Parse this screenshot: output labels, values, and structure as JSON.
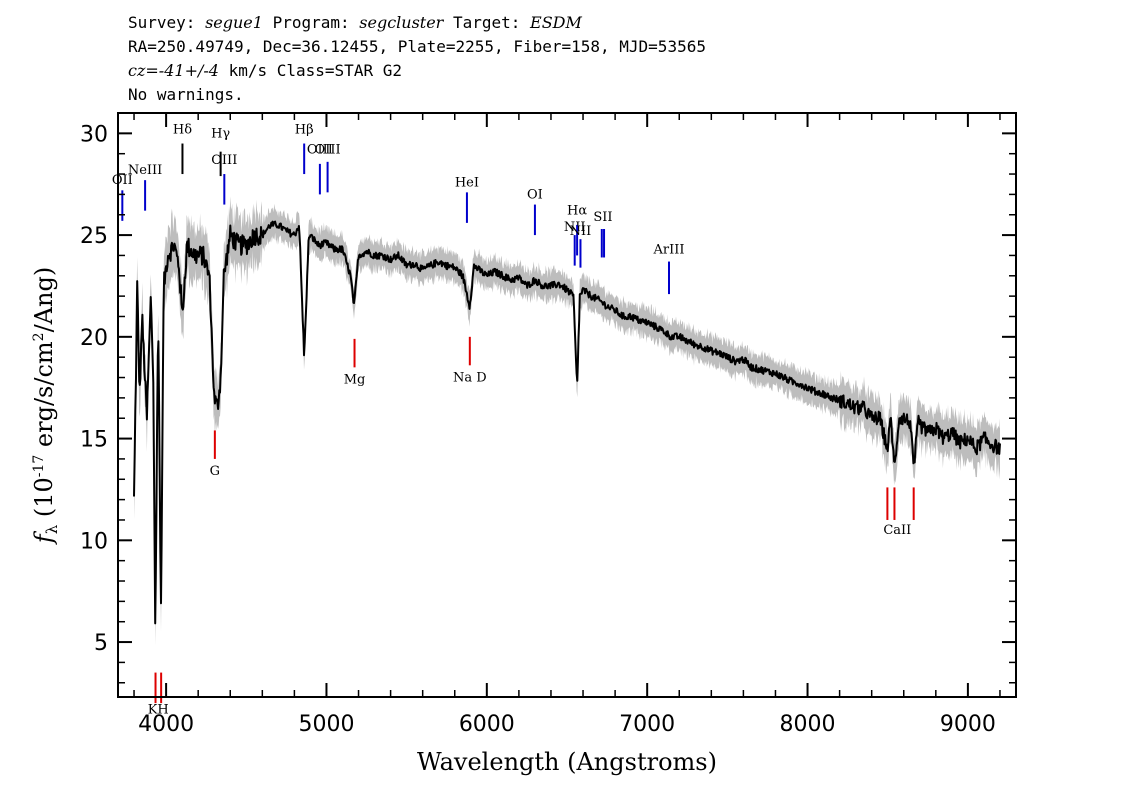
{
  "header": {
    "line1_survey_label": "Survey: ",
    "line1_survey_value": "segue1",
    "line1_program_label": " Program: ",
    "line1_program_value": "segcluster",
    "line1_target_label": " Target: ",
    "line1_target_value": "ESDM",
    "line2": "RA=250.49749, Dec=36.12455, Plate=2255, Fiber=158, MJD=53565",
    "line3_cz_label": "cz=",
    "line3_cz_value": "-41+/-4",
    "line3_rest": " km/s Class=STAR G2",
    "line4": "No warnings."
  },
  "colors": {
    "spectrum": "#000000",
    "error_band": "#bdbdbd",
    "emission_line": "#0000cc",
    "absorption_line": "#dd0000",
    "balmer_line": "#000000"
  },
  "chart_data": {
    "type": "line",
    "xlabel": "Wavelength (Angstroms)",
    "ylabel_parts": {
      "f": "f",
      "sub": "λ",
      "open": " (10",
      "exp": "-17",
      "mid": " erg/s/cm",
      "exp2": "2",
      "close": "/Ang)"
    },
    "xlim": [
      3700,
      9300
    ],
    "ylim": [
      2.3,
      31.0
    ],
    "x_ticks": [
      4000,
      5000,
      6000,
      7000,
      8000,
      9000
    ],
    "x_tick_labels": [
      "4000",
      "5000",
      "6000",
      "7000",
      "8000",
      "9000"
    ],
    "y_ticks": [
      5,
      10,
      15,
      20,
      25,
      30
    ],
    "y_tick_labels": [
      "5",
      "10",
      "15",
      "20",
      "25",
      "30"
    ],
    "series": [
      {
        "x": [
          3800,
          3820,
          3835,
          3850,
          3880,
          3905,
          3920,
          3933,
          3950,
          3968,
          3985,
          4010,
          4050,
          4080,
          4101,
          4130,
          4180,
          4230,
          4270,
          4300,
          4320,
          4340,
          4360,
          4400,
          4450,
          4500,
          4550,
          4600,
          4650,
          4700,
          4750,
          4800,
          4830,
          4861,
          4890,
          4920,
          4950,
          5000,
          5050,
          5100,
          5150,
          5172,
          5200,
          5250,
          5300,
          5350,
          5400,
          5450,
          5500,
          5550,
          5600,
          5650,
          5700,
          5750,
          5800,
          5850,
          5893,
          5920,
          5950,
          6000,
          6050,
          6100,
          6150,
          6200,
          6250,
          6300,
          6350,
          6400,
          6450,
          6500,
          6540,
          6563,
          6580,
          6600,
          6650,
          6700,
          6750,
          6800,
          6850,
          6900,
          6950,
          7000,
          7050,
          7100,
          7150,
          7200,
          7250,
          7300,
          7350,
          7400,
          7450,
          7500,
          7550,
          7600,
          7650,
          7700,
          7750,
          7800,
          7850,
          7900,
          7950,
          8000,
          8050,
          8100,
          8150,
          8200,
          8250,
          8300,
          8350,
          8400,
          8450,
          8498,
          8520,
          8542,
          8570,
          8600,
          8640,
          8662,
          8690,
          8720,
          8760,
          8800,
          8850,
          8900,
          8950,
          9000,
          9050,
          9100,
          9150,
          9200
        ],
        "y": [
          12.0,
          22.5,
          17.0,
          21.0,
          16.0,
          22.0,
          18.0,
          5.0,
          21.5,
          6.5,
          22.5,
          24.0,
          24.5,
          23.5,
          21.0,
          24.5,
          24.0,
          24.0,
          23.0,
          17.0,
          16.5,
          18.0,
          23.0,
          25.0,
          24.5,
          24.5,
          25.0,
          25.0,
          25.5,
          25.5,
          25.2,
          25.0,
          25.5,
          19.0,
          25.0,
          24.8,
          24.5,
          24.6,
          24.3,
          24.3,
          23.0,
          21.5,
          24.0,
          24.2,
          24.0,
          24.0,
          23.8,
          24.0,
          23.5,
          23.6,
          23.3,
          23.5,
          23.7,
          23.5,
          23.4,
          23.0,
          21.5,
          23.5,
          23.3,
          23.0,
          23.2,
          23.0,
          22.8,
          22.9,
          22.5,
          22.8,
          22.5,
          22.5,
          22.6,
          22.3,
          22.0,
          17.5,
          22.0,
          22.3,
          22.0,
          21.8,
          21.5,
          21.3,
          21.0,
          21.0,
          20.8,
          20.7,
          20.5,
          20.3,
          20.0,
          20.0,
          19.8,
          19.6,
          19.5,
          19.3,
          19.2,
          19.0,
          18.8,
          18.9,
          18.5,
          18.4,
          18.3,
          18.2,
          18.0,
          17.8,
          17.7,
          17.5,
          17.3,
          17.2,
          17.0,
          16.9,
          16.7,
          16.5,
          16.5,
          16.0,
          16.0,
          14.5,
          16.0,
          13.5,
          16.0,
          16.0,
          15.8,
          13.5,
          15.8,
          15.5,
          15.3,
          15.5,
          15.0,
          15.3,
          14.8,
          15.0,
          14.5,
          15.0,
          14.7,
          14.5
        ]
      }
    ],
    "line_markers": [
      {
        "label": "OII",
        "x": 3727,
        "kind": "emission",
        "y_top": 27.2,
        "y_bot": 25.7,
        "label_y": 27.5
      },
      {
        "label": "NeIII",
        "x": 3869,
        "kind": "emission",
        "y_top": 27.7,
        "y_bot": 26.2,
        "label_y": 28.0
      },
      {
        "label": "Hδ",
        "x": 4102,
        "kind": "balmer",
        "y_top": 29.5,
        "y_bot": 28.0,
        "label_y": 30.0
      },
      {
        "label": "Hγ",
        "x": 4340,
        "kind": "balmer",
        "y_top": 29.1,
        "y_bot": 27.9,
        "label_y": 29.8
      },
      {
        "label": "OIII",
        "x": 4363,
        "kind": "emission",
        "y_top": 28.0,
        "y_bot": 26.5,
        "label_y": 28.5
      },
      {
        "label": "Hβ",
        "x": 4861,
        "kind": "emission",
        "y_top": 29.5,
        "y_bot": 28.0,
        "label_y": 30.0
      },
      {
        "label": "OIII",
        "x": 4959,
        "kind": "emission",
        "y_top": 28.5,
        "y_bot": 27.0,
        "label_y": 29.0
      },
      {
        "label": "OIII",
        "x": 5007,
        "kind": "emission",
        "y_top": 28.6,
        "y_bot": 27.1,
        "label_y": 29.0
      },
      {
        "label": "HeI",
        "x": 5876,
        "kind": "emission",
        "y_top": 27.1,
        "y_bot": 25.6,
        "label_y": 27.4
      },
      {
        "label": "OI",
        "x": 6300,
        "kind": "emission",
        "y_top": 26.5,
        "y_bot": 25.0,
        "label_y": 26.8
      },
      {
        "label": "NII",
        "x": 6548,
        "kind": "emission",
        "y_top": 25.0,
        "y_bot": 23.5,
        "label_y": 25.2
      },
      {
        "label": "Hα",
        "x": 6563,
        "kind": "emission",
        "y_top": 25.5,
        "y_bot": 24.0,
        "label_y": 26.0
      },
      {
        "label": "NII",
        "x": 6584,
        "kind": "emission",
        "y_top": 24.8,
        "y_bot": 23.4,
        "label_y": 25.0
      },
      {
        "label": "SII",
        "x": 6717,
        "kind": "emission",
        "y_top": 25.3,
        "y_bot": 23.9,
        "label_y": 25.7
      },
      {
        "label": "SII",
        "x": 6731,
        "kind": "emission",
        "y_top": 25.3,
        "y_bot": 23.9,
        "label_y": 25.7
      },
      {
        "label": "ArIII",
        "x": 7136,
        "kind": "emission",
        "y_top": 23.7,
        "y_bot": 22.1,
        "label_y": 24.1
      },
      {
        "label": "K",
        "x": 3934,
        "kind": "absorption",
        "y_top": 3.5,
        "y_bot": 2.0,
        "label_y": 1.5
      },
      {
        "label": "H",
        "x": 3969,
        "kind": "absorption",
        "y_top": 3.5,
        "y_bot": 2.0,
        "label_y": 1.5
      },
      {
        "label": "G",
        "x": 4304,
        "kind": "absorption",
        "y_top": 15.4,
        "y_bot": 14.0,
        "label_y": 13.2
      },
      {
        "label": "Mg",
        "x": 5175,
        "kind": "absorption",
        "y_top": 19.9,
        "y_bot": 18.5,
        "label_y": 17.7
      },
      {
        "label": "Na D",
        "x": 5894,
        "kind": "absorption",
        "y_top": 20.0,
        "y_bot": 18.6,
        "label_y": 17.8
      },
      {
        "label": "CaII",
        "x": 8498,
        "kind": "absorption",
        "y_top": 12.6,
        "y_bot": 11.0,
        "label_y": 10.3
      },
      {
        "label": "CaII",
        "x": 8542,
        "kind": "absorption",
        "y_top": 12.6,
        "y_bot": 11.0,
        "label_y": 10.3
      },
      {
        "label": "CaII",
        "x": 8662,
        "kind": "absorption",
        "y_top": 12.6,
        "y_bot": 11.0,
        "label_y": 10.3
      }
    ]
  }
}
